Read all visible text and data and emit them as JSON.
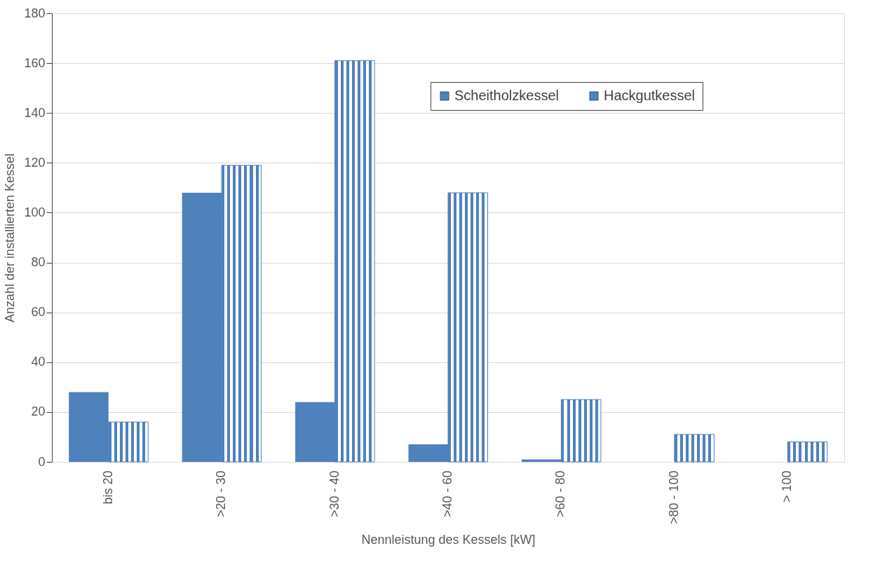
{
  "chart_data": {
    "type": "bar",
    "xlabel": "Nennleistung  des Kessels [kW]",
    "ylabel": "Anzahl  der installierten  Kessel",
    "categories": [
      "bis 20",
      ">20 - 30",
      ">30 - 40",
      ">40 - 60",
      ">60 - 80",
      ">80 - 100",
      "> 100"
    ],
    "series": [
      {
        "name": "Scheitholzkessel",
        "color": "#4f81bd",
        "values": [
          28,
          108,
          24,
          7,
          1,
          0,
          0
        ]
      },
      {
        "name": "Hackgutkessel",
        "color": "#4f81bd",
        "values": [
          16,
          119,
          161,
          108,
          25,
          11,
          8
        ]
      }
    ],
    "ylim": [
      0,
      180
    ],
    "yticks": [
      0,
      20,
      40,
      60,
      80,
      100,
      120,
      140,
      160,
      180
    ],
    "grid": "y",
    "legend": "top right"
  }
}
